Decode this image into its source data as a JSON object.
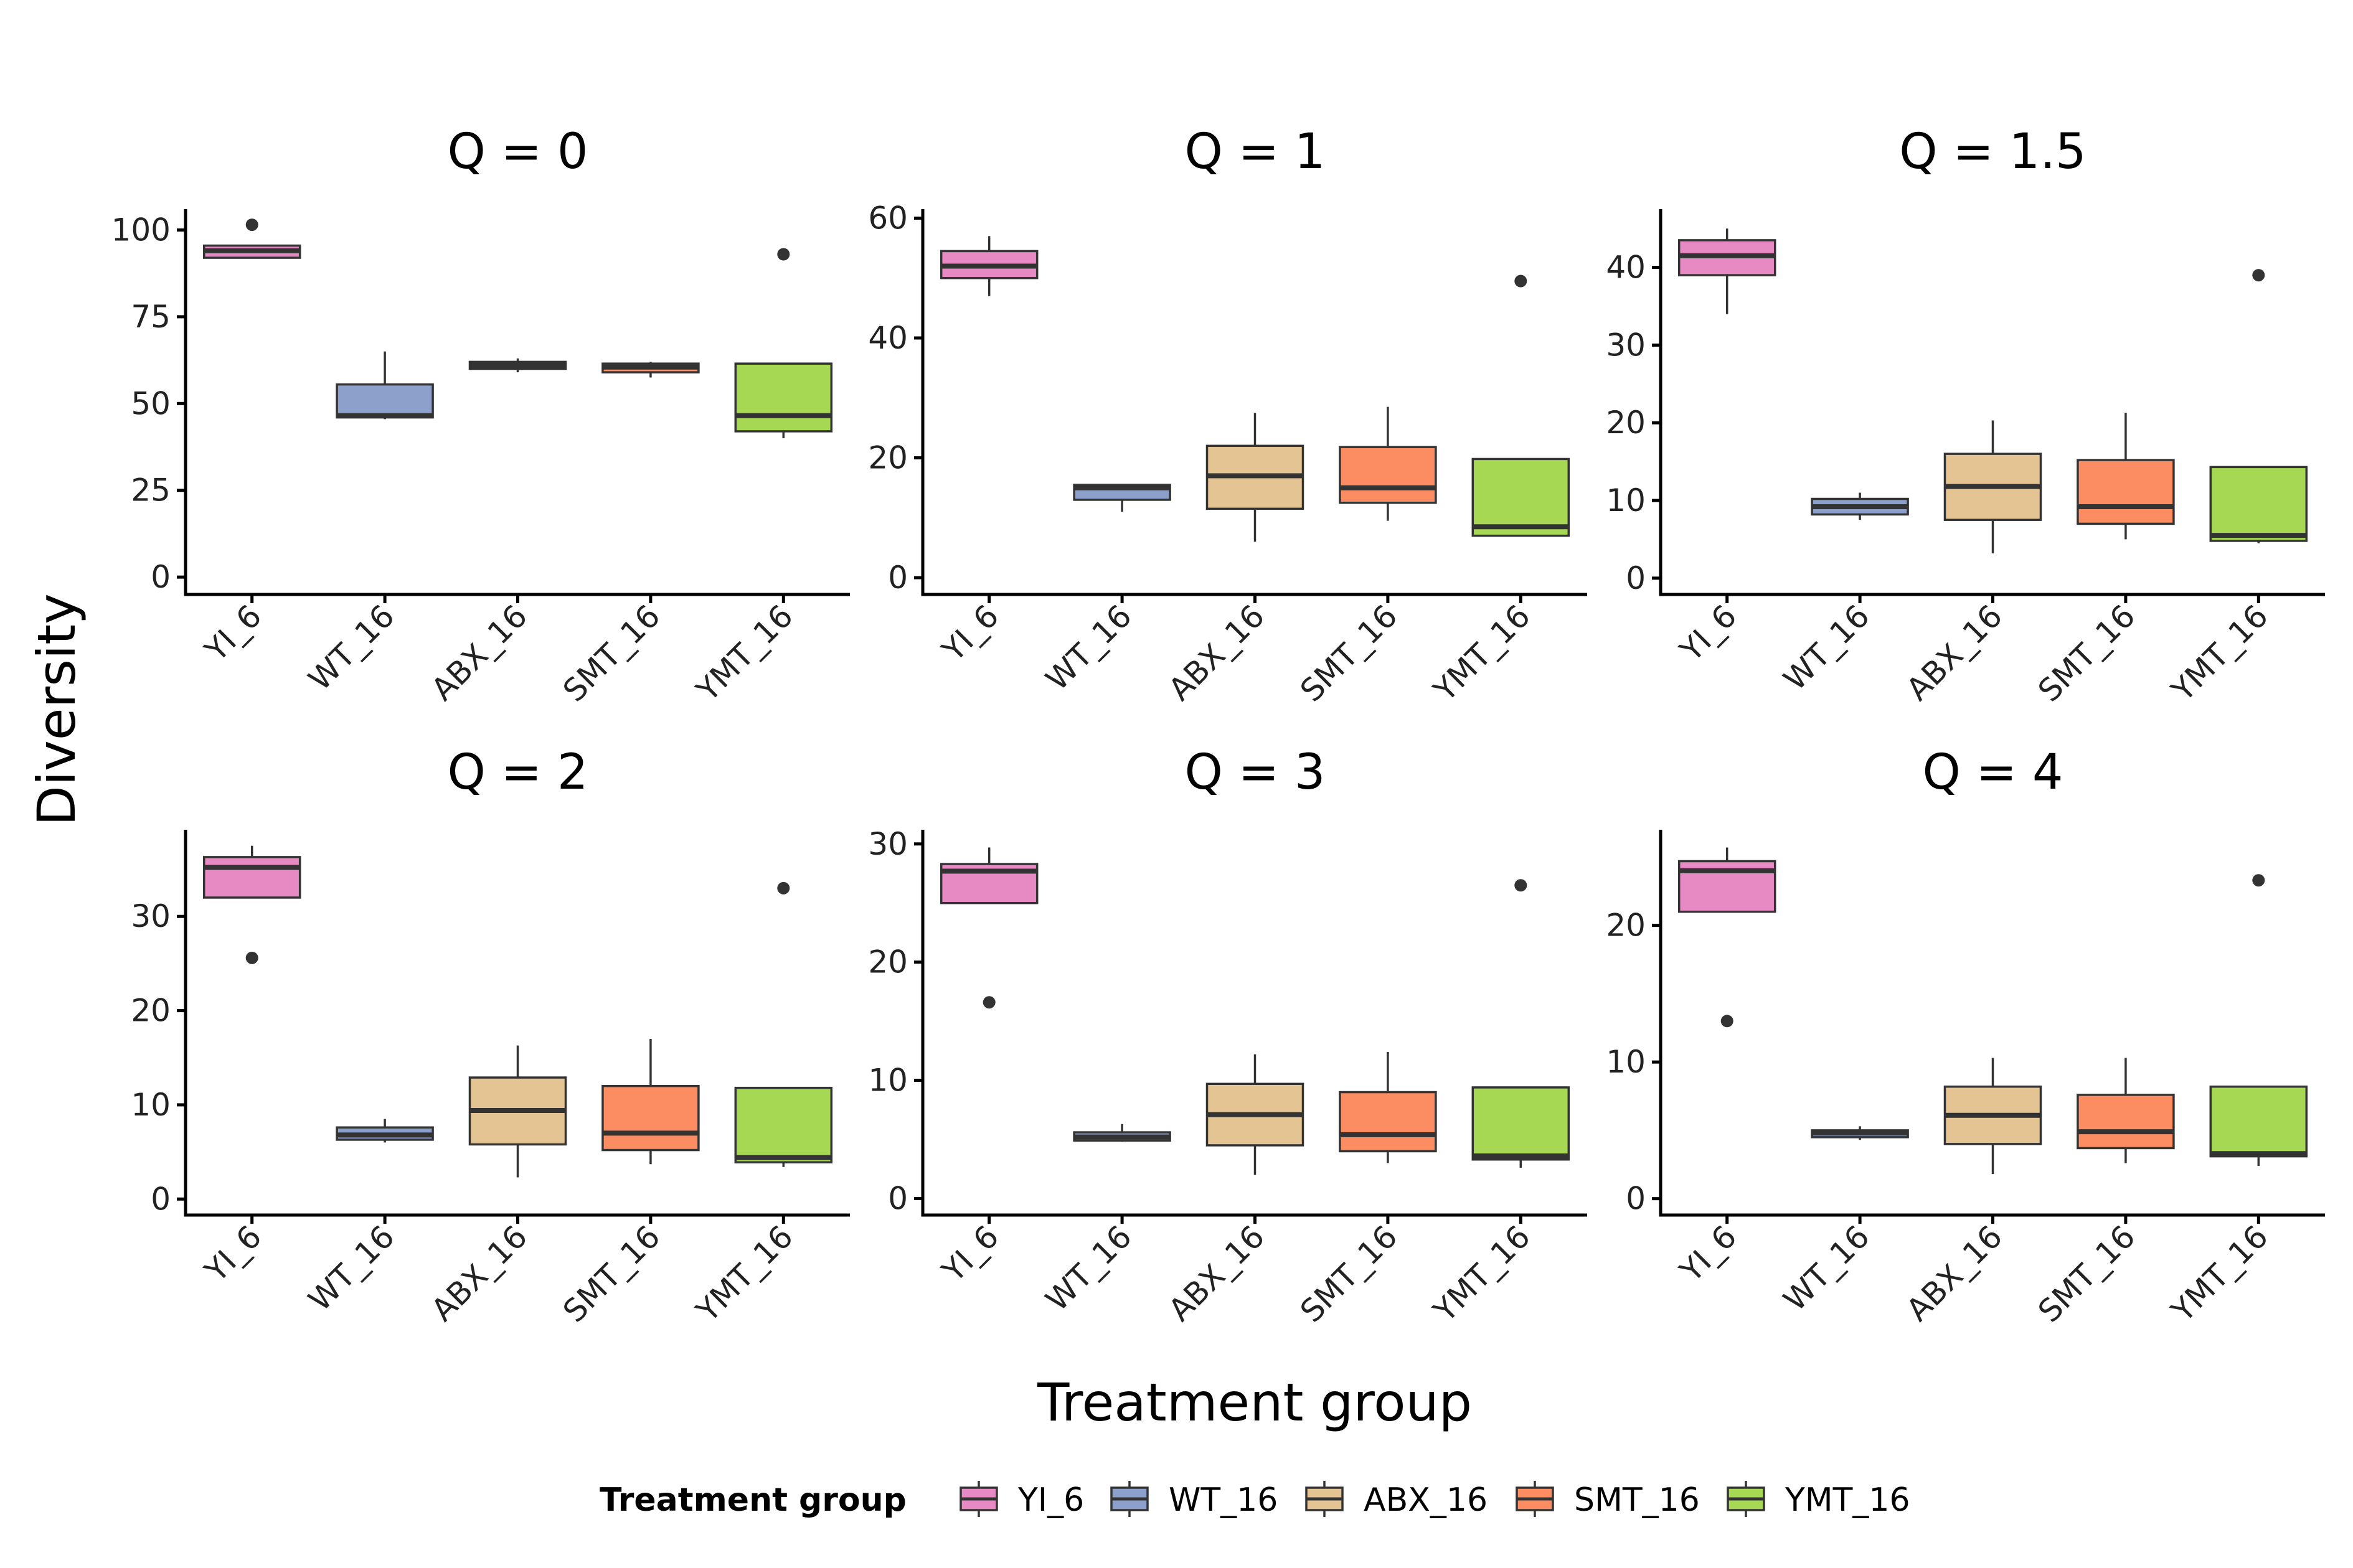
{
  "figure": {
    "ylabel": "Diversity",
    "xlabel": "Treatment group"
  },
  "legend": {
    "title": "Treatment group",
    "entries": [
      "YI_6",
      "WT_16",
      "ABX_16",
      "SMT_16",
      "YMT_16"
    ]
  },
  "colors": {
    "YI_6": "#E78AC3",
    "WT_16": "#8DA0CB",
    "ABX_16": "#E5C494",
    "SMT_16": "#FC8D62",
    "YMT_16": "#A6D854",
    "outline": "#333333",
    "axis": "#000000"
  },
  "chart_data": [
    {
      "type": "box",
      "title": "Q = 0",
      "categories": [
        "YI_6",
        "WT_16",
        "ABX_16",
        "SMT_16",
        "YMT_16"
      ],
      "ylim": [
        -5,
        106
      ],
      "yticks": [
        0,
        25,
        50,
        75,
        100
      ],
      "boxes": [
        {
          "group": "YI_6",
          "min": 92,
          "q1": 92,
          "median": 94,
          "q3": 95.5,
          "max": 95.5,
          "outliers": [
            101.5
          ]
        },
        {
          "group": "WT_16",
          "min": 45.5,
          "q1": 46,
          "median": 46.5,
          "q3": 55.5,
          "max": 65,
          "outliers": []
        },
        {
          "group": "ABX_16",
          "min": 59,
          "q1": 60,
          "median": 61,
          "q3": 62,
          "max": 63,
          "outliers": []
        },
        {
          "group": "SMT_16",
          "min": 57.5,
          "q1": 59,
          "median": 60.5,
          "q3": 61.5,
          "max": 62,
          "outliers": []
        },
        {
          "group": "YMT_16",
          "min": 40,
          "q1": 42,
          "median": 46.5,
          "q3": 61.5,
          "max": 61.5,
          "outliers": [
            93
          ]
        }
      ],
      "grid": false
    },
    {
      "type": "box",
      "title": "Q = 1",
      "categories": [
        "YI_6",
        "WT_16",
        "ABX_16",
        "SMT_16",
        "YMT_16"
      ],
      "ylim": [
        -2.8,
        61.5
      ],
      "yticks": [
        0,
        20,
        40,
        60
      ],
      "boxes": [
        {
          "group": "YI_6",
          "min": 47,
          "q1": 50,
          "median": 52,
          "q3": 54.5,
          "max": 57,
          "outliers": []
        },
        {
          "group": "WT_16",
          "min": 11,
          "q1": 13,
          "median": 15,
          "q3": 15.5,
          "max": 15.5,
          "outliers": []
        },
        {
          "group": "ABX_16",
          "min": 6,
          "q1": 11.5,
          "median": 17,
          "q3": 22,
          "max": 27.5,
          "outliers": []
        },
        {
          "group": "SMT_16",
          "min": 9.5,
          "q1": 12.5,
          "median": 15,
          "q3": 21.8,
          "max": 28.5,
          "outliers": []
        },
        {
          "group": "YMT_16",
          "min": 7,
          "q1": 7,
          "median": 8.5,
          "q3": 19.8,
          "max": 19.8,
          "outliers": [
            49.5
          ]
        }
      ],
      "grid": false
    },
    {
      "type": "box",
      "title": "Q = 1.5",
      "categories": [
        "YI_6",
        "WT_16",
        "ABX_16",
        "SMT_16",
        "YMT_16"
      ],
      "ylim": [
        -2.1,
        47.5
      ],
      "yticks": [
        0,
        10,
        20,
        30,
        40
      ],
      "boxes": [
        {
          "group": "YI_6",
          "min": 34,
          "q1": 39,
          "median": 41.5,
          "q3": 43.5,
          "max": 45,
          "outliers": []
        },
        {
          "group": "WT_16",
          "min": 7.5,
          "q1": 8.2,
          "median": 9.2,
          "q3": 10.2,
          "max": 11,
          "outliers": []
        },
        {
          "group": "ABX_16",
          "min": 3.2,
          "q1": 7.5,
          "median": 11.8,
          "q3": 16,
          "max": 20.3,
          "outliers": []
        },
        {
          "group": "SMT_16",
          "min": 5,
          "q1": 7,
          "median": 9.2,
          "q3": 15.2,
          "max": 21.3,
          "outliers": []
        },
        {
          "group": "YMT_16",
          "min": 4.5,
          "q1": 4.8,
          "median": 5.5,
          "q3": 14.3,
          "max": 14.3,
          "outliers": [
            39
          ]
        }
      ],
      "grid": false
    },
    {
      "type": "box",
      "title": "Q = 2",
      "categories": [
        "YI_6",
        "WT_16",
        "ABX_16",
        "SMT_16",
        "YMT_16"
      ],
      "ylim": [
        -1.7,
        39.2
      ],
      "yticks": [
        0,
        10,
        20,
        30
      ],
      "boxes": [
        {
          "group": "YI_6",
          "min": 32,
          "q1": 32,
          "median": 35.2,
          "q3": 36.3,
          "max": 37.5,
          "outliers": [
            25.6
          ]
        },
        {
          "group": "WT_16",
          "min": 6,
          "q1": 6.3,
          "median": 6.8,
          "q3": 7.6,
          "max": 8.5,
          "outliers": []
        },
        {
          "group": "ABX_16",
          "min": 2.3,
          "q1": 5.8,
          "median": 9.4,
          "q3": 12.9,
          "max": 16.3,
          "outliers": []
        },
        {
          "group": "SMT_16",
          "min": 3.7,
          "q1": 5.2,
          "median": 7,
          "q3": 12,
          "max": 17,
          "outliers": []
        },
        {
          "group": "YMT_16",
          "min": 3.4,
          "q1": 3.9,
          "median": 4.4,
          "q3": 11.8,
          "max": 11.8,
          "outliers": [
            33
          ]
        }
      ],
      "grid": false
    },
    {
      "type": "box",
      "title": "Q = 3",
      "categories": [
        "YI_6",
        "WT_16",
        "ABX_16",
        "SMT_16",
        "YMT_16"
      ],
      "ylim": [
        -1.4,
        31.2
      ],
      "yticks": [
        0,
        10,
        20,
        30
      ],
      "boxes": [
        {
          "group": "YI_6",
          "min": 25,
          "q1": 25,
          "median": 27.7,
          "q3": 28.3,
          "max": 29.7,
          "outliers": [
            16.6
          ]
        },
        {
          "group": "WT_16",
          "min": 4.8,
          "q1": 4.9,
          "median": 5.2,
          "q3": 5.6,
          "max": 6.3,
          "outliers": []
        },
        {
          "group": "ABX_16",
          "min": 2,
          "q1": 4.5,
          "median": 7.1,
          "q3": 9.7,
          "max": 12.2,
          "outliers": []
        },
        {
          "group": "SMT_16",
          "min": 3,
          "q1": 4,
          "median": 5.4,
          "q3": 9,
          "max": 12.4,
          "outliers": []
        },
        {
          "group": "YMT_16",
          "min": 2.6,
          "q1": 3.3,
          "median": 3.6,
          "q3": 9.4,
          "max": 9.4,
          "outliers": [
            26.5
          ]
        }
      ],
      "grid": false
    },
    {
      "type": "box",
      "title": "Q = 4",
      "categories": [
        "YI_6",
        "WT_16",
        "ABX_16",
        "SMT_16",
        "YMT_16"
      ],
      "ylim": [
        -1.2,
        27
      ],
      "yticks": [
        0,
        10,
        20
      ],
      "boxes": [
        {
          "group": "YI_6",
          "min": 21,
          "q1": 21,
          "median": 24,
          "q3": 24.7,
          "max": 25.7,
          "outliers": [
            13
          ]
        },
        {
          "group": "WT_16",
          "min": 4.3,
          "q1": 4.5,
          "median": 4.8,
          "q3": 5,
          "max": 5.3,
          "outliers": []
        },
        {
          "group": "ABX_16",
          "min": 1.8,
          "q1": 4,
          "median": 6.1,
          "q3": 8.2,
          "max": 10.3,
          "outliers": []
        },
        {
          "group": "SMT_16",
          "min": 2.6,
          "q1": 3.7,
          "median": 4.9,
          "q3": 7.6,
          "max": 10.3,
          "outliers": []
        },
        {
          "group": "YMT_16",
          "min": 2.4,
          "q1": 3.1,
          "median": 3.3,
          "q3": 8.2,
          "max": 8.2,
          "outliers": [
            23.3
          ]
        }
      ],
      "grid": false
    }
  ]
}
